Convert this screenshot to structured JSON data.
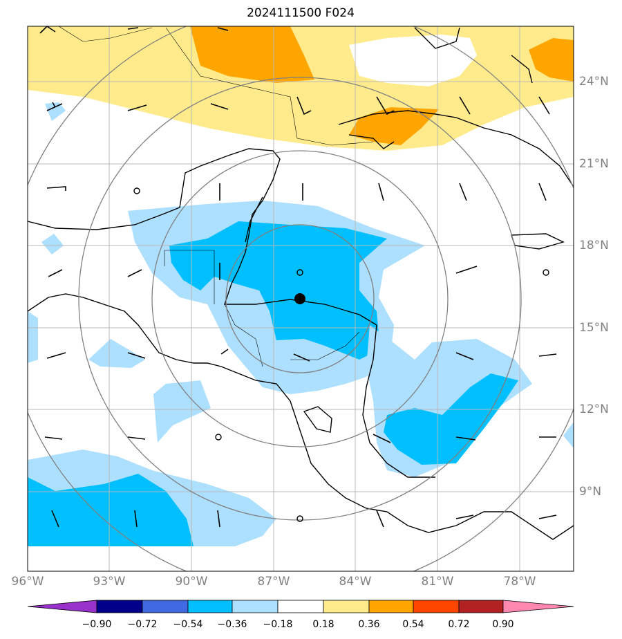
{
  "title": "2024111500 F024",
  "map": {
    "lon_ticks": [
      "96°W",
      "93°W",
      "90°W",
      "87°W",
      "84°W",
      "81°W",
      "78°W"
    ],
    "lat_ticks": [
      "24°N",
      "21°N",
      "18°N",
      "15°N",
      "12°N",
      "9°N"
    ],
    "center_marker": "storm-center"
  },
  "colorbar": {
    "ticks": [
      "−0.90",
      "−0.72",
      "−0.54",
      "−0.36",
      "−0.18",
      "0.18",
      "0.36",
      "0.54",
      "0.72",
      "0.90"
    ],
    "colors": [
      "#9932CC",
      "#00008B",
      "#4169E1",
      "#00BFFF",
      "#ADDFFF",
      "#FFFFFF",
      "#FFEB8C",
      "#FFA500",
      "#FF4500",
      "#B22222",
      "#FF88B0"
    ]
  }
}
